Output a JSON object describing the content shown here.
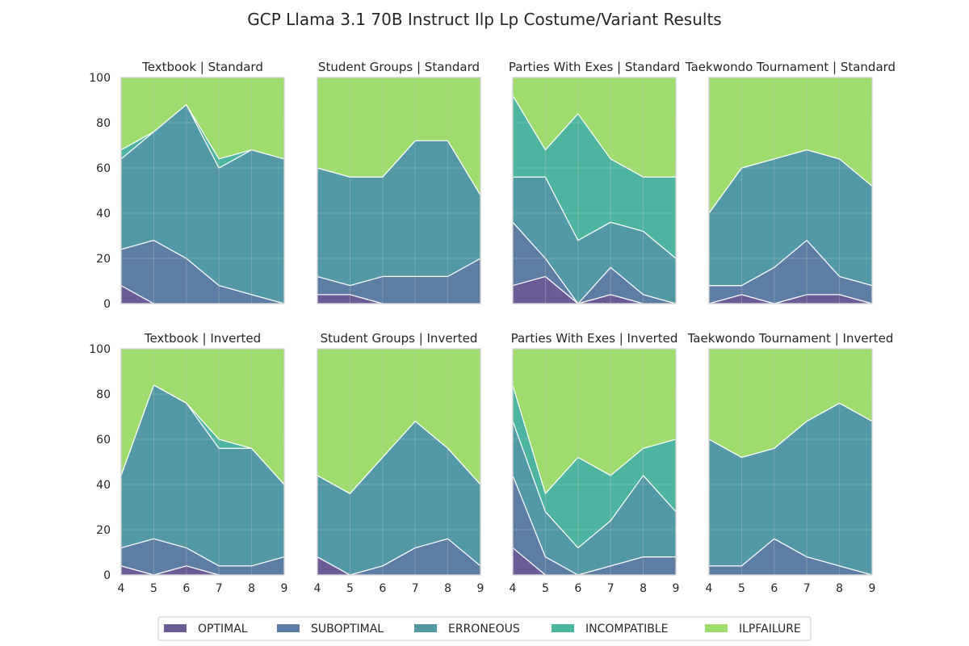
{
  "chart_data": {
    "type": "area",
    "title": "GCP Llama 3.1 70B Instruct Ilp Lp Costume/Variant Results",
    "x": [
      4,
      5,
      6,
      7,
      8,
      9
    ],
    "ylim": [
      0,
      100
    ],
    "yticks": [
      0,
      20,
      40,
      60,
      80,
      100
    ],
    "stacked": true,
    "grid": true,
    "legend_placement": "bottom-center",
    "series_names": [
      "OPTIMAL",
      "SUBOPTIMAL",
      "ERRONEOUS",
      "INCOMPATIBLE",
      "ILPFAILURE"
    ],
    "colors": {
      "OPTIMAL": "#46337e",
      "SUBOPTIMAL": "#365c8d",
      "ERRONEOUS": "#277f8e",
      "INCOMPATIBLE": "#1fa187",
      "ILPFAILURE": "#86d549"
    },
    "panels": [
      {
        "title": "Textbook | Standard",
        "series": [
          {
            "name": "OPTIMAL",
            "values": [
              8,
              0,
              0,
              0,
              0,
              0
            ]
          },
          {
            "name": "SUBOPTIMAL",
            "values": [
              16,
              28,
              20,
              8,
              4,
              0
            ]
          },
          {
            "name": "ERRONEOUS",
            "values": [
              40,
              48,
              68,
              52,
              64,
              64
            ]
          },
          {
            "name": "INCOMPATIBLE",
            "values": [
              4,
              0,
              0,
              4,
              0,
              0
            ]
          },
          {
            "name": "ILPFAILURE",
            "values": [
              32,
              24,
              12,
              36,
              32,
              36
            ]
          }
        ]
      },
      {
        "title": "Student Groups | Standard",
        "series": [
          {
            "name": "OPTIMAL",
            "values": [
              4,
              4,
              0,
              0,
              0,
              0
            ]
          },
          {
            "name": "SUBOPTIMAL",
            "values": [
              8,
              4,
              12,
              12,
              12,
              20
            ]
          },
          {
            "name": "ERRONEOUS",
            "values": [
              48,
              48,
              44,
              60,
              60,
              28
            ]
          },
          {
            "name": "INCOMPATIBLE",
            "values": [
              0,
              0,
              0,
              0,
              0,
              0
            ]
          },
          {
            "name": "ILPFAILURE",
            "values": [
              40,
              44,
              44,
              28,
              28,
              52
            ]
          }
        ]
      },
      {
        "title": "Parties With Exes | Standard",
        "series": [
          {
            "name": "OPTIMAL",
            "values": [
              8,
              12,
              0,
              4,
              0,
              0
            ]
          },
          {
            "name": "SUBOPTIMAL",
            "values": [
              28,
              8,
              0,
              12,
              4,
              0
            ]
          },
          {
            "name": "ERRONEOUS",
            "values": [
              20,
              36,
              28,
              20,
              28,
              20
            ]
          },
          {
            "name": "INCOMPATIBLE",
            "values": [
              36,
              12,
              56,
              28,
              24,
              36
            ]
          },
          {
            "name": "ILPFAILURE",
            "values": [
              8,
              32,
              16,
              36,
              44,
              44
            ]
          }
        ]
      },
      {
        "title": "Taekwondo Tournament | Standard",
        "series": [
          {
            "name": "OPTIMAL",
            "values": [
              0,
              4,
              0,
              4,
              4,
              0
            ]
          },
          {
            "name": "SUBOPTIMAL",
            "values": [
              8,
              4,
              16,
              24,
              8,
              8
            ]
          },
          {
            "name": "ERRONEOUS",
            "values": [
              32,
              52,
              48,
              40,
              52,
              44
            ]
          },
          {
            "name": "INCOMPATIBLE",
            "values": [
              0,
              0,
              0,
              0,
              0,
              0
            ]
          },
          {
            "name": "ILPFAILURE",
            "values": [
              60,
              40,
              36,
              32,
              36,
              48
            ]
          }
        ]
      },
      {
        "title": "Textbook | Inverted",
        "series": [
          {
            "name": "OPTIMAL",
            "values": [
              4,
              0,
              4,
              0,
              0,
              0
            ]
          },
          {
            "name": "SUBOPTIMAL",
            "values": [
              8,
              16,
              8,
              4,
              4,
              8
            ]
          },
          {
            "name": "ERRONEOUS",
            "values": [
              32,
              68,
              64,
              52,
              52,
              32
            ]
          },
          {
            "name": "INCOMPATIBLE",
            "values": [
              0,
              0,
              0,
              4,
              0,
              0
            ]
          },
          {
            "name": "ILPFAILURE",
            "values": [
              56,
              16,
              24,
              40,
              44,
              60
            ]
          }
        ]
      },
      {
        "title": "Student Groups | Inverted",
        "series": [
          {
            "name": "OPTIMAL",
            "values": [
              8,
              0,
              0,
              0,
              0,
              0
            ]
          },
          {
            "name": "SUBOPTIMAL",
            "values": [
              0,
              0,
              4,
              12,
              16,
              4
            ]
          },
          {
            "name": "ERRONEOUS",
            "values": [
              36,
              36,
              48,
              56,
              40,
              36
            ]
          },
          {
            "name": "INCOMPATIBLE",
            "values": [
              0,
              0,
              0,
              0,
              0,
              0
            ]
          },
          {
            "name": "ILPFAILURE",
            "values": [
              56,
              64,
              48,
              32,
              44,
              60
            ]
          }
        ]
      },
      {
        "title": "Parties With Exes | Inverted",
        "series": [
          {
            "name": "OPTIMAL",
            "values": [
              12,
              0,
              0,
              0,
              0,
              0
            ]
          },
          {
            "name": "SUBOPTIMAL",
            "values": [
              32,
              8,
              0,
              4,
              8,
              8
            ]
          },
          {
            "name": "ERRONEOUS",
            "values": [
              24,
              20,
              12,
              20,
              36,
              20
            ]
          },
          {
            "name": "INCOMPATIBLE",
            "values": [
              16,
              8,
              40,
              20,
              12,
              32
            ]
          },
          {
            "name": "ILPFAILURE",
            "values": [
              16,
              64,
              48,
              56,
              44,
              40
            ]
          }
        ]
      },
      {
        "title": "Taekwondo Tournament | Inverted",
        "series": [
          {
            "name": "OPTIMAL",
            "values": [
              0,
              0,
              0,
              0,
              0,
              0
            ]
          },
          {
            "name": "SUBOPTIMAL",
            "values": [
              4,
              4,
              16,
              8,
              4,
              0
            ]
          },
          {
            "name": "ERRONEOUS",
            "values": [
              56,
              48,
              40,
              60,
              72,
              68
            ]
          },
          {
            "name": "INCOMPATIBLE",
            "values": [
              0,
              0,
              0,
              0,
              0,
              0
            ]
          },
          {
            "name": "ILPFAILURE",
            "values": [
              40,
              48,
              44,
              32,
              24,
              32
            ]
          }
        ]
      }
    ]
  }
}
